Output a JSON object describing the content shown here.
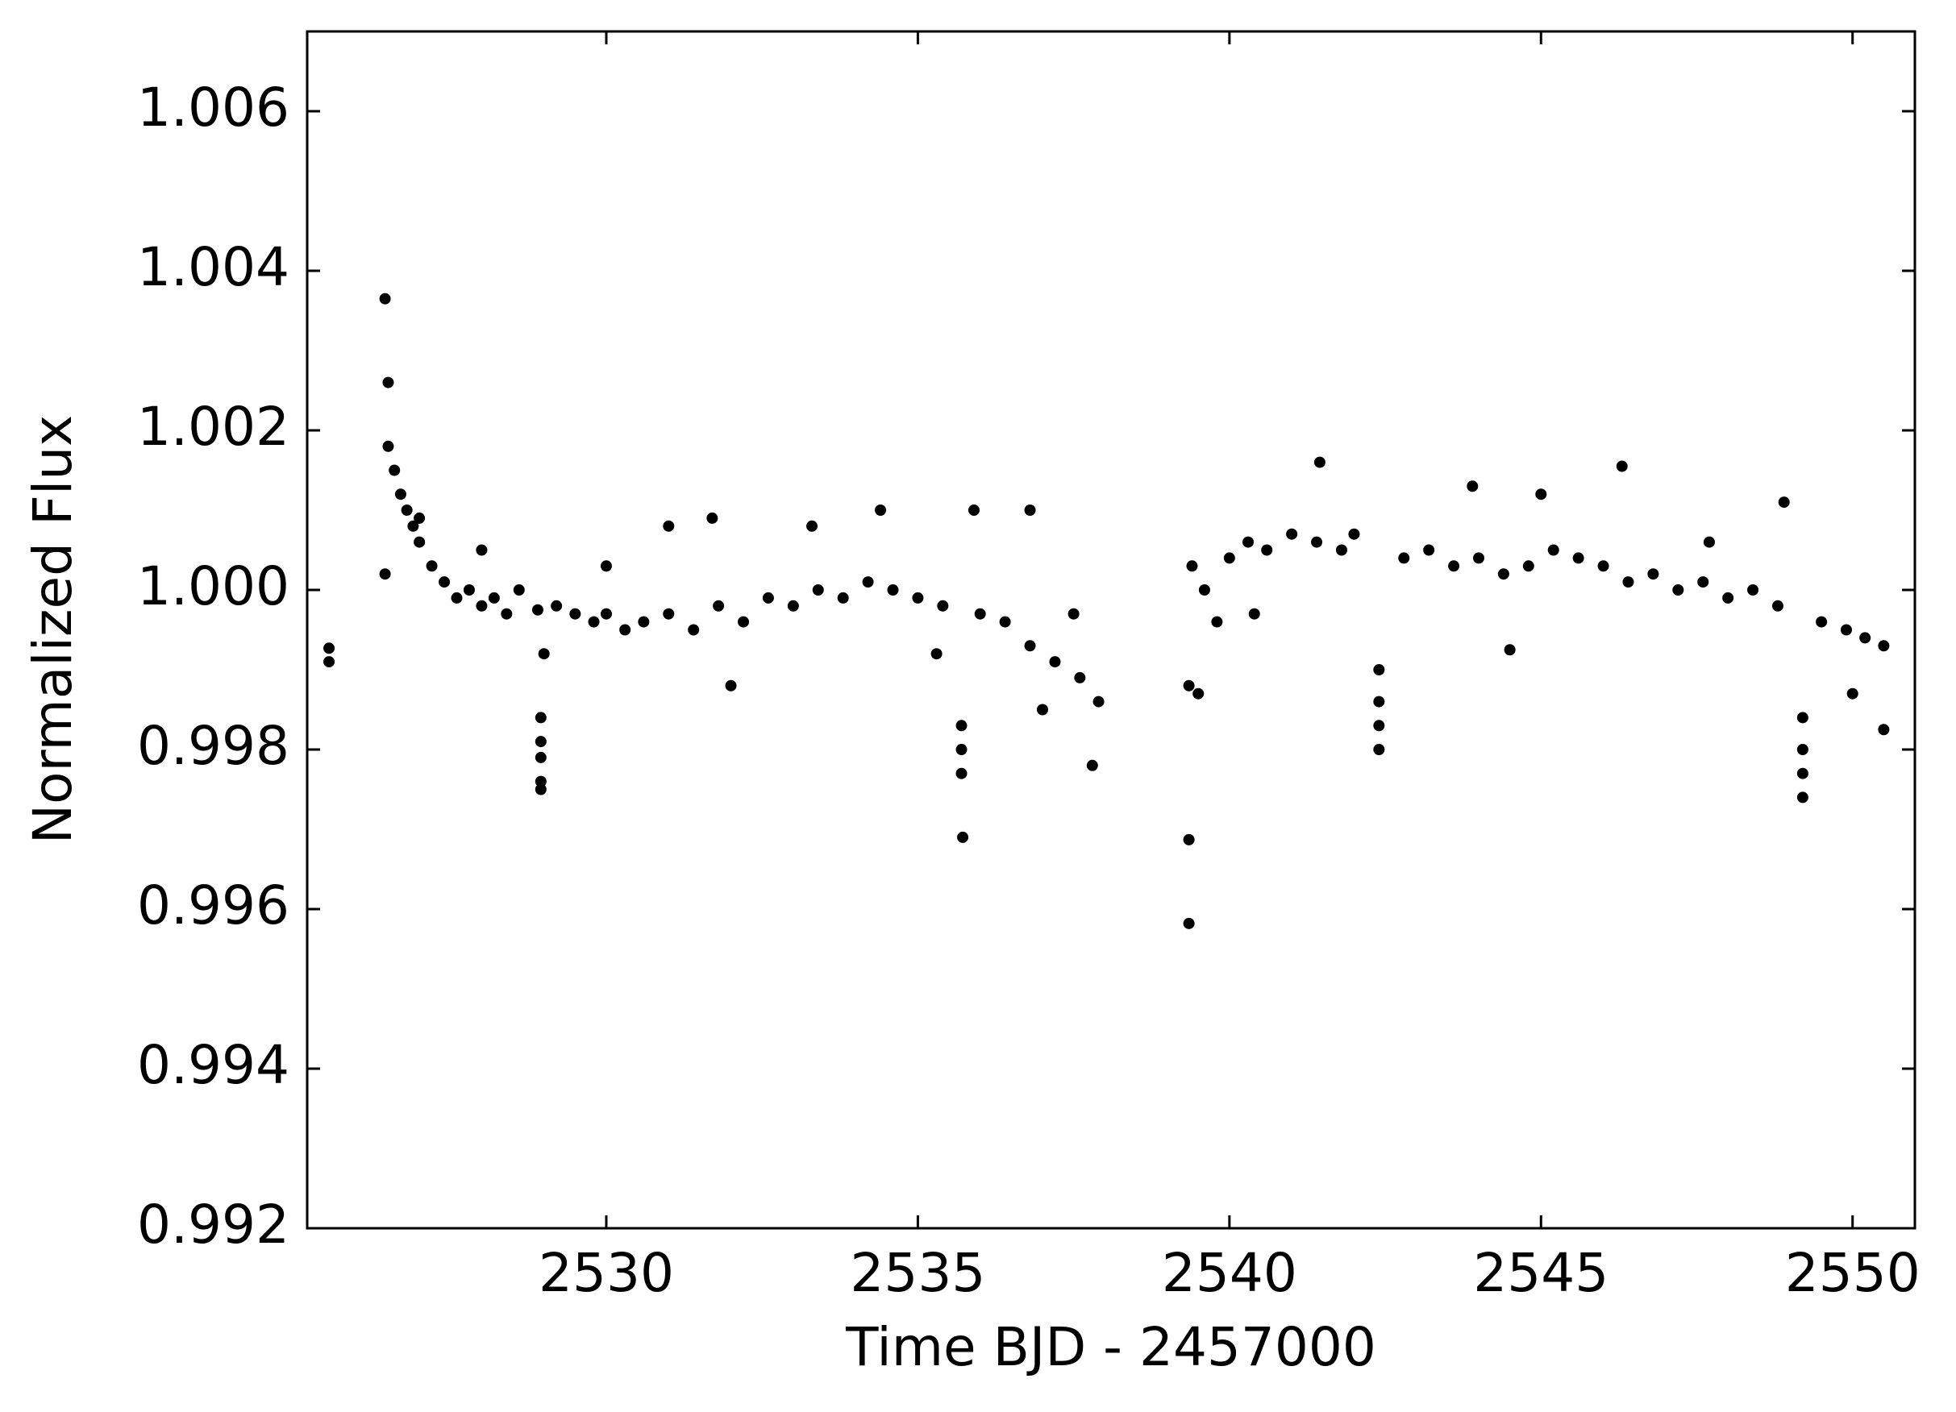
{
  "chart_data": {
    "type": "scatter",
    "xlabel": "Time BJD - 2457000",
    "ylabel": "Normalized Flux",
    "color": "#000000",
    "grid": false,
    "xlim": [
      2525.2,
      2551.0
    ],
    "ylim": [
      0.992,
      1.007
    ],
    "xticks": [
      2530,
      2535,
      2540,
      2545,
      2550
    ],
    "yticks": [
      0.992,
      0.994,
      0.996,
      0.998,
      {
        "value": 1,
        "label": "1.000"
      },
      1.002,
      1.004,
      1.006
    ],
    "x": [
      2525.55,
      2525.55,
      2526.45,
      2526.5,
      2526.45,
      2526.5,
      2526.6,
      2526.7,
      2526.8,
      2526.9,
      2527.0,
      2527.2,
      2527.4,
      2527.6,
      2527.8,
      2528.0,
      2528.2,
      2528.4,
      2528.6,
      2528.9,
      2528.95,
      2528.95,
      2528.95,
      2528.95,
      2528.95,
      2529.2,
      2529.5,
      2529.8,
      2530.0,
      2530.3,
      2530.6,
      2531.0,
      2531.4,
      2531.8,
      2532.2,
      2532.6,
      2533.0,
      2533.4,
      2533.8,
      2534.2,
      2534.6,
      2535.0,
      2535.4,
      2535.7,
      2535.7,
      2535.7,
      2535.72,
      2536.0,
      2536.4,
      2536.8,
      2537.2,
      2537.6,
      2537.9,
      2537.8,
      2527.0,
      2528.0,
      2529.0,
      2530.0,
      2531.0,
      2531.7,
      2532.0,
      2533.3,
      2534.4,
      2535.3,
      2535.9,
      2536.8,
      2537.0,
      2537.5,
      2539.35,
      2539.35,
      2539.35,
      2539.4,
      2539.6,
      2539.8,
      2540.0,
      2540.3,
      2540.6,
      2541.0,
      2541.4,
      2541.8,
      2542.0,
      2542.4,
      2542.4,
      2542.4,
      2542.4,
      2542.8,
      2543.2,
      2543.6,
      2544.0,
      2544.4,
      2544.8,
      2545.2,
      2545.6,
      2546.0,
      2546.4,
      2546.8,
      2547.2,
      2547.6,
      2548.0,
      2548.4,
      2548.8,
      2549.2,
      2549.2,
      2549.2,
      2549.2,
      2549.5,
      2549.9,
      2550.2,
      2550.5,
      2550.5,
      2541.45,
      2546.3,
      2544.5,
      2540.4,
      2543.9,
      2548.9,
      2545.0,
      2547.7,
      2539.5,
      2550.0
    ],
    "values": [
      0.99927,
      0.9991,
      1.00365,
      1.0026,
      1.0002,
      1.0018,
      1.0015,
      1.0012,
      1.001,
      1.0008,
      1.0006,
      1.0003,
      1.0001,
      0.9999,
      1.0,
      0.9998,
      0.9999,
      0.9997,
      1.0,
      0.99975,
      0.9984,
      0.9981,
      0.9979,
      0.9976,
      0.9975,
      0.9998,
      0.9997,
      0.9996,
      0.9997,
      0.9995,
      0.9996,
      0.9997,
      0.9995,
      0.9998,
      0.9996,
      0.9999,
      0.9998,
      1.0,
      0.9999,
      1.0001,
      1.0,
      0.9999,
      0.9998,
      0.9983,
      0.998,
      0.9977,
      0.9969,
      0.9997,
      0.9996,
      0.9993,
      0.9991,
      0.9989,
      0.9986,
      0.9978,
      1.0009,
      1.0005,
      0.9992,
      1.0003,
      1.0008,
      1.0009,
      0.9988,
      1.0008,
      1.001,
      0.9992,
      1.001,
      1.001,
      0.9985,
      0.9997,
      0.9988,
      0.99687,
      0.99582,
      1.0003,
      1.0,
      0.9996,
      1.0004,
      1.0006,
      1.0005,
      1.0007,
      1.0006,
      1.0005,
      1.0007,
      0.999,
      0.9986,
      0.9983,
      0.998,
      1.0004,
      1.0005,
      1.0003,
      1.0004,
      1.0002,
      1.0003,
      1.0005,
      1.0004,
      1.0003,
      1.0001,
      1.0002,
      1.0,
      1.0001,
      0.9999,
      1.0,
      0.9998,
      0.9984,
      0.998,
      0.9977,
      0.9974,
      0.9996,
      0.9995,
      0.9994,
      0.9993,
      0.99825,
      1.0016,
      1.00155,
      0.99925,
      0.9997,
      1.0013,
      1.0011,
      1.0012,
      1.0006,
      0.9987,
      0.9987
    ]
  }
}
